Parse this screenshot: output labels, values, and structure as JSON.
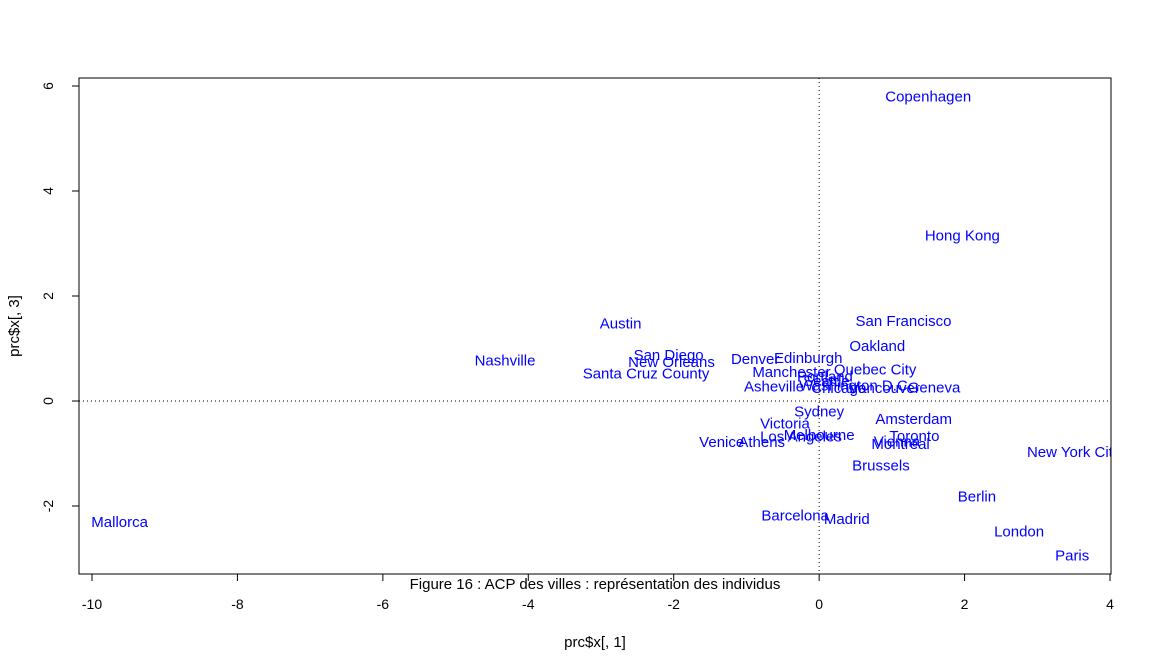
{
  "chart_data": {
    "type": "scatter",
    "title": "",
    "caption": "Figure 16 : ACP des villes : représentation des individus",
    "xlabel": "prc$x[, 1]",
    "ylabel": "prc$x[, 3]",
    "xlim": [
      -10.2,
      4.0
    ],
    "ylim": [
      -3.3,
      6.2
    ],
    "xticks": [
      -10,
      -8,
      -6,
      -4,
      -2,
      0,
      2,
      4
    ],
    "yticks": [
      -2,
      0,
      2,
      4,
      6
    ],
    "reference_lines": {
      "x": 0,
      "y": 0,
      "style": "dotted"
    },
    "point_color": "#0000ff",
    "points": [
      {
        "label": "Copenhagen",
        "x": 1.5,
        "y": 5.8
      },
      {
        "label": "Hong Kong",
        "x": 1.97,
        "y": 3.15
      },
      {
        "label": "San Francisco",
        "x": 1.16,
        "y": 1.52
      },
      {
        "label": "Austin",
        "x": -2.73,
        "y": 1.48
      },
      {
        "label": "Oakland",
        "x": 0.8,
        "y": 1.05
      },
      {
        "label": "Nashville",
        "x": -4.32,
        "y": 0.77
      },
      {
        "label": "San Diego",
        "x": -2.07,
        "y": 0.88
      },
      {
        "label": "New Orleans",
        "x": -2.03,
        "y": 0.74
      },
      {
        "label": "Santa Cruz County",
        "x": -2.38,
        "y": 0.52
      },
      {
        "label": "Denver",
        "x": -0.88,
        "y": 0.8
      },
      {
        "label": "Edinburgh",
        "x": -0.15,
        "y": 0.82
      },
      {
        "label": "Quebec City",
        "x": 0.77,
        "y": 0.6
      },
      {
        "label": "Manchester",
        "x": -0.38,
        "y": 0.55
      },
      {
        "label": "Portland",
        "x": 0.08,
        "y": 0.47
      },
      {
        "label": "Seattle",
        "x": 0.1,
        "y": 0.38
      },
      {
        "label": "Washington D.C.",
        "x": 0.5,
        "y": 0.3
      },
      {
        "label": "Asheville",
        "x": -0.62,
        "y": 0.28
      },
      {
        "label": "Chicago",
        "x": 0.27,
        "y": 0.25
      },
      {
        "label": "Vancouver",
        "x": 0.9,
        "y": 0.25
      },
      {
        "label": "Geneva",
        "x": 1.58,
        "y": 0.26
      },
      {
        "label": "Sydney",
        "x": 0.0,
        "y": -0.2
      },
      {
        "label": "Amsterdam",
        "x": 1.3,
        "y": -0.34
      },
      {
        "label": "Victoria",
        "x": -0.47,
        "y": -0.43
      },
      {
        "label": "Melbourne",
        "x": 0.0,
        "y": -0.65
      },
      {
        "label": "Los Angeles",
        "x": -0.25,
        "y": -0.68
      },
      {
        "label": "Toronto",
        "x": 1.31,
        "y": -0.67
      },
      {
        "label": "Vienna",
        "x": 1.07,
        "y": -0.77
      },
      {
        "label": "Montreal",
        "x": 1.12,
        "y": -0.82
      },
      {
        "label": "Venice",
        "x": -1.34,
        "y": -0.78
      },
      {
        "label": "Athens",
        "x": -0.79,
        "y": -0.78
      },
      {
        "label": "New York City",
        "x": 3.5,
        "y": -0.97
      },
      {
        "label": "Brussels",
        "x": 0.85,
        "y": -1.23
      },
      {
        "label": "Berlin",
        "x": 2.17,
        "y": -1.82
      },
      {
        "label": "Barcelona",
        "x": -0.33,
        "y": -2.18
      },
      {
        "label": "Madrid",
        "x": 0.38,
        "y": -2.25
      },
      {
        "label": "Mallorca",
        "x": -9.62,
        "y": -2.3
      },
      {
        "label": "London",
        "x": 2.75,
        "y": -2.49
      },
      {
        "label": "Paris",
        "x": 3.48,
        "y": -2.94
      }
    ]
  }
}
